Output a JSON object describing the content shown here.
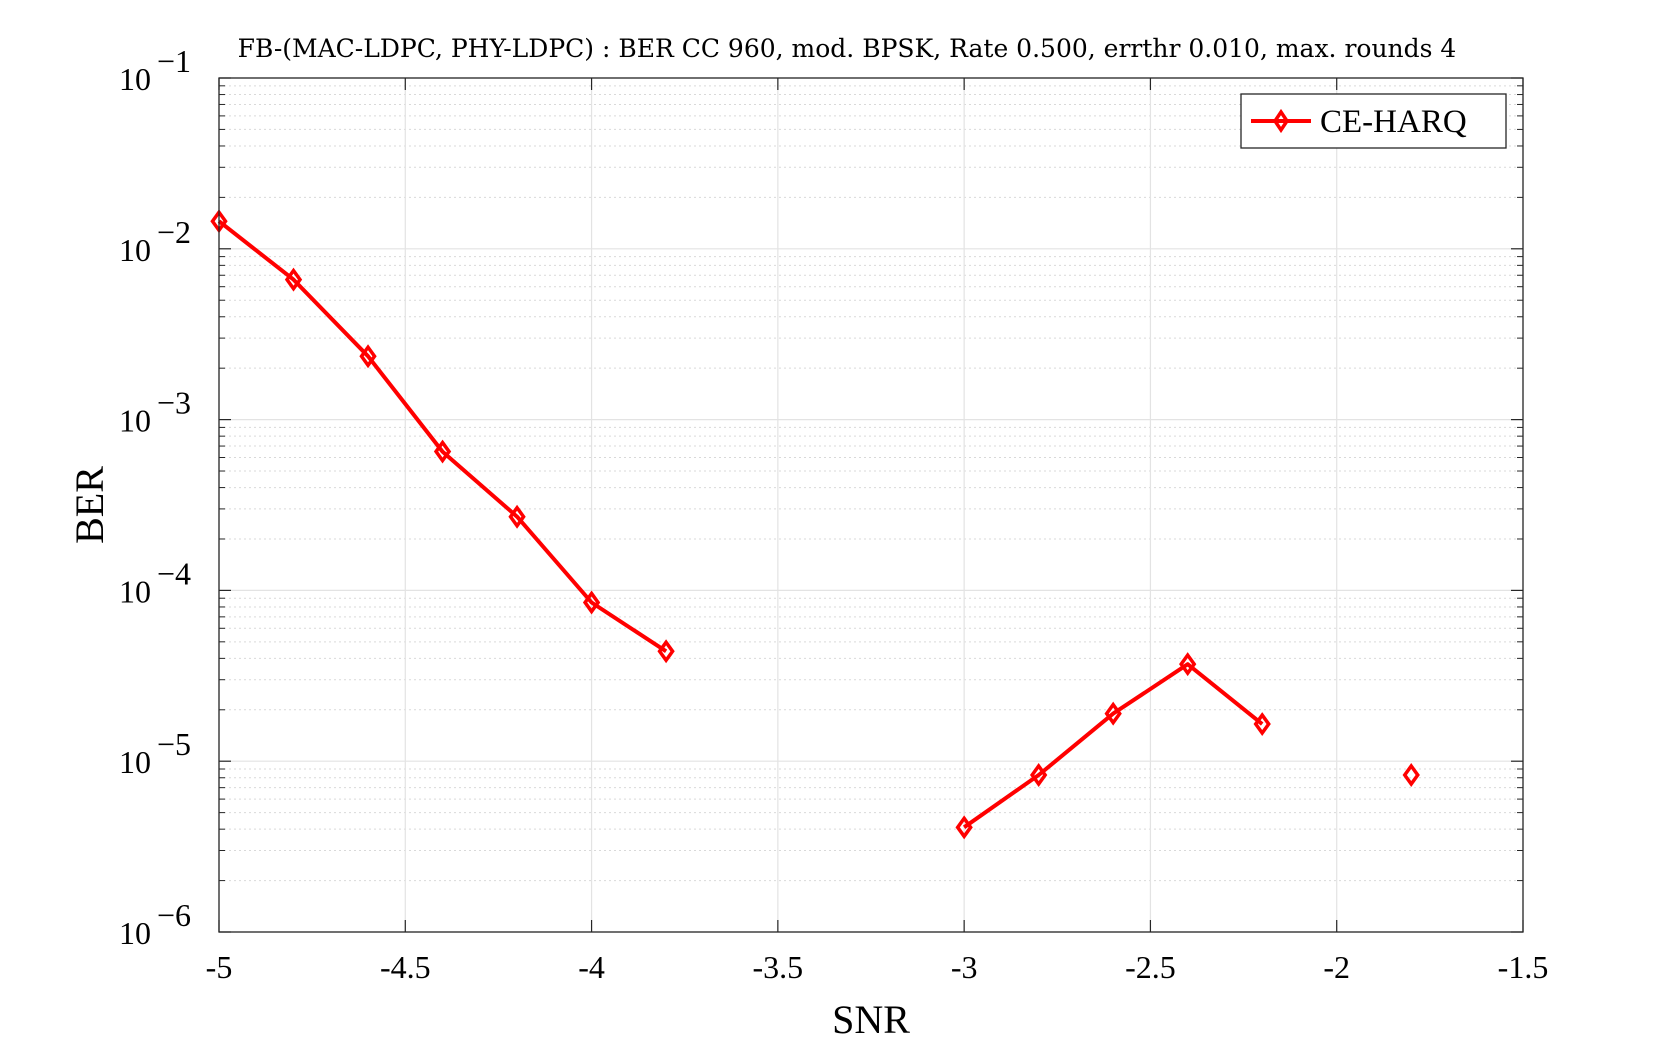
{
  "chart_data": {
    "type": "line",
    "title": "FB-(MAC-LDPC, PHY-LDPC) : BER CC 960, mod. BPSK, Rate 0.500, errthr 0.010, max. rounds 4",
    "xlabel": "SNR",
    "ylabel": "BER",
    "xlim": [
      -5,
      -1.5
    ],
    "ylim": [
      1e-06,
      0.1
    ],
    "yscale": "log",
    "grid": true,
    "minor_grid": true,
    "legend_position": "top-right",
    "x_ticks": [
      {
        "value": -5,
        "label": "-5"
      },
      {
        "value": -4.5,
        "label": "-4.5"
      },
      {
        "value": -4,
        "label": "-4"
      },
      {
        "value": -3.5,
        "label": "-3.5"
      },
      {
        "value": -3,
        "label": "-3"
      },
      {
        "value": -2.5,
        "label": "-2.5"
      },
      {
        "value": -2,
        "label": "-2"
      },
      {
        "value": -1.5,
        "label": "-1.5"
      }
    ],
    "y_ticks": [
      {
        "value": 1e-06,
        "base": "10",
        "exp": "−6"
      },
      {
        "value": 1e-05,
        "base": "10",
        "exp": "−5"
      },
      {
        "value": 0.0001,
        "base": "10",
        "exp": "−4"
      },
      {
        "value": 0.001,
        "base": "10",
        "exp": "−3"
      },
      {
        "value": 0.01,
        "base": "10",
        "exp": "−2"
      },
      {
        "value": 0.1,
        "base": "10",
        "exp": "−1"
      }
    ],
    "series": [
      {
        "name": "CE-HARQ",
        "color": "#ff0000",
        "marker": "diamond",
        "x": [
          -5.0,
          -4.8,
          -4.6,
          -4.4,
          -4.2,
          -4.0,
          -3.8,
          -3.6,
          -3.4,
          -3.2,
          -3.0,
          -2.8,
          -2.6,
          -2.4,
          -2.2,
          -2.0,
          -1.8
        ],
        "y": [
          0.0145,
          0.0066,
          0.00235,
          0.00065,
          0.00027,
          8.5e-05,
          4.4e-05,
          null,
          null,
          null,
          4.1e-06,
          8.3e-06,
          1.9e-05,
          3.7e-05,
          1.65e-05,
          null,
          8.3e-06
        ]
      }
    ]
  }
}
